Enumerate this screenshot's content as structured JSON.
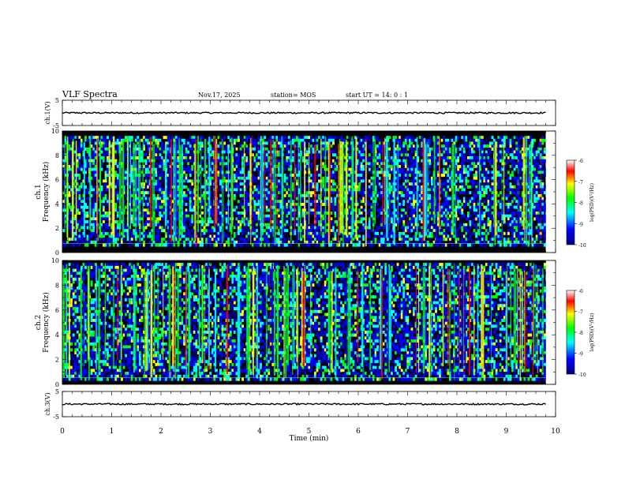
{
  "header": {
    "title": "VLF Spectra",
    "date": "Nov.17, 2025",
    "station": "station= MOS",
    "start": "start  UT =   14: 0   : 1"
  },
  "colors": {
    "background": "#ffffff",
    "axes": "#000000",
    "spectrogram_floor": "#000000",
    "colormap": [
      "#000080",
      "#0000ff",
      "#00ffff",
      "#00ff00",
      "#ffff00",
      "#ff0000",
      "#ffffff"
    ]
  },
  "chart_data": [
    {
      "type": "line",
      "name": "ch.1 waveform",
      "ylabel": "ch.1(V)",
      "xlim": [
        0,
        10
      ],
      "ylim": [
        -5,
        5
      ],
      "yticks": [
        "5",
        "-5"
      ],
      "x": [
        0,
        9.8
      ],
      "values": [
        0,
        0
      ]
    },
    {
      "type": "heatmap",
      "name": "ch.1 spectrogram",
      "ylabel": "ch.1 Frequency (kHz)",
      "xlim": [
        0,
        10
      ],
      "ylim": [
        0,
        10
      ],
      "yticks": [
        "0",
        "2",
        "4",
        "6",
        "8",
        "10"
      ],
      "data_extent_min": 9.8,
      "band_khz": [
        0.5,
        9.6
      ],
      "colorbar": {
        "label": "log(PSD)(V²/Hz)",
        "ticks": [
          "-6",
          "-7",
          "-8",
          "-9",
          "-10"
        ],
        "range": [
          -10,
          -6
        ]
      }
    },
    {
      "type": "heatmap",
      "name": "ch.2 spectrogram",
      "ylabel": "ch.2 Frequency (kHz)",
      "xlim": [
        0,
        10
      ],
      "ylim": [
        0,
        10
      ],
      "yticks": [
        "0",
        "2",
        "4",
        "6",
        "8",
        "10"
      ],
      "data_extent_min": 9.8,
      "band_khz": [
        0.3,
        9.8
      ],
      "colorbar": {
        "label": "log(PSD)(V²/Hz)",
        "ticks": [
          "-6",
          "-7",
          "-8",
          "-9",
          "-10"
        ],
        "range": [
          -10,
          -6
        ]
      }
    },
    {
      "type": "line",
      "name": "ch.3 waveform",
      "ylabel": "ch.3(V)",
      "xlim": [
        0,
        10
      ],
      "ylim": [
        -5,
        5
      ],
      "yticks": [
        "5",
        "-5"
      ],
      "x": [
        0,
        9.8
      ],
      "values": [
        0,
        0
      ]
    }
  ],
  "x_axis": {
    "label": "Time  (min)",
    "ticks": [
      "0",
      "1",
      "2",
      "3",
      "4",
      "5",
      "6",
      "7",
      "8",
      "9",
      "10"
    ]
  }
}
